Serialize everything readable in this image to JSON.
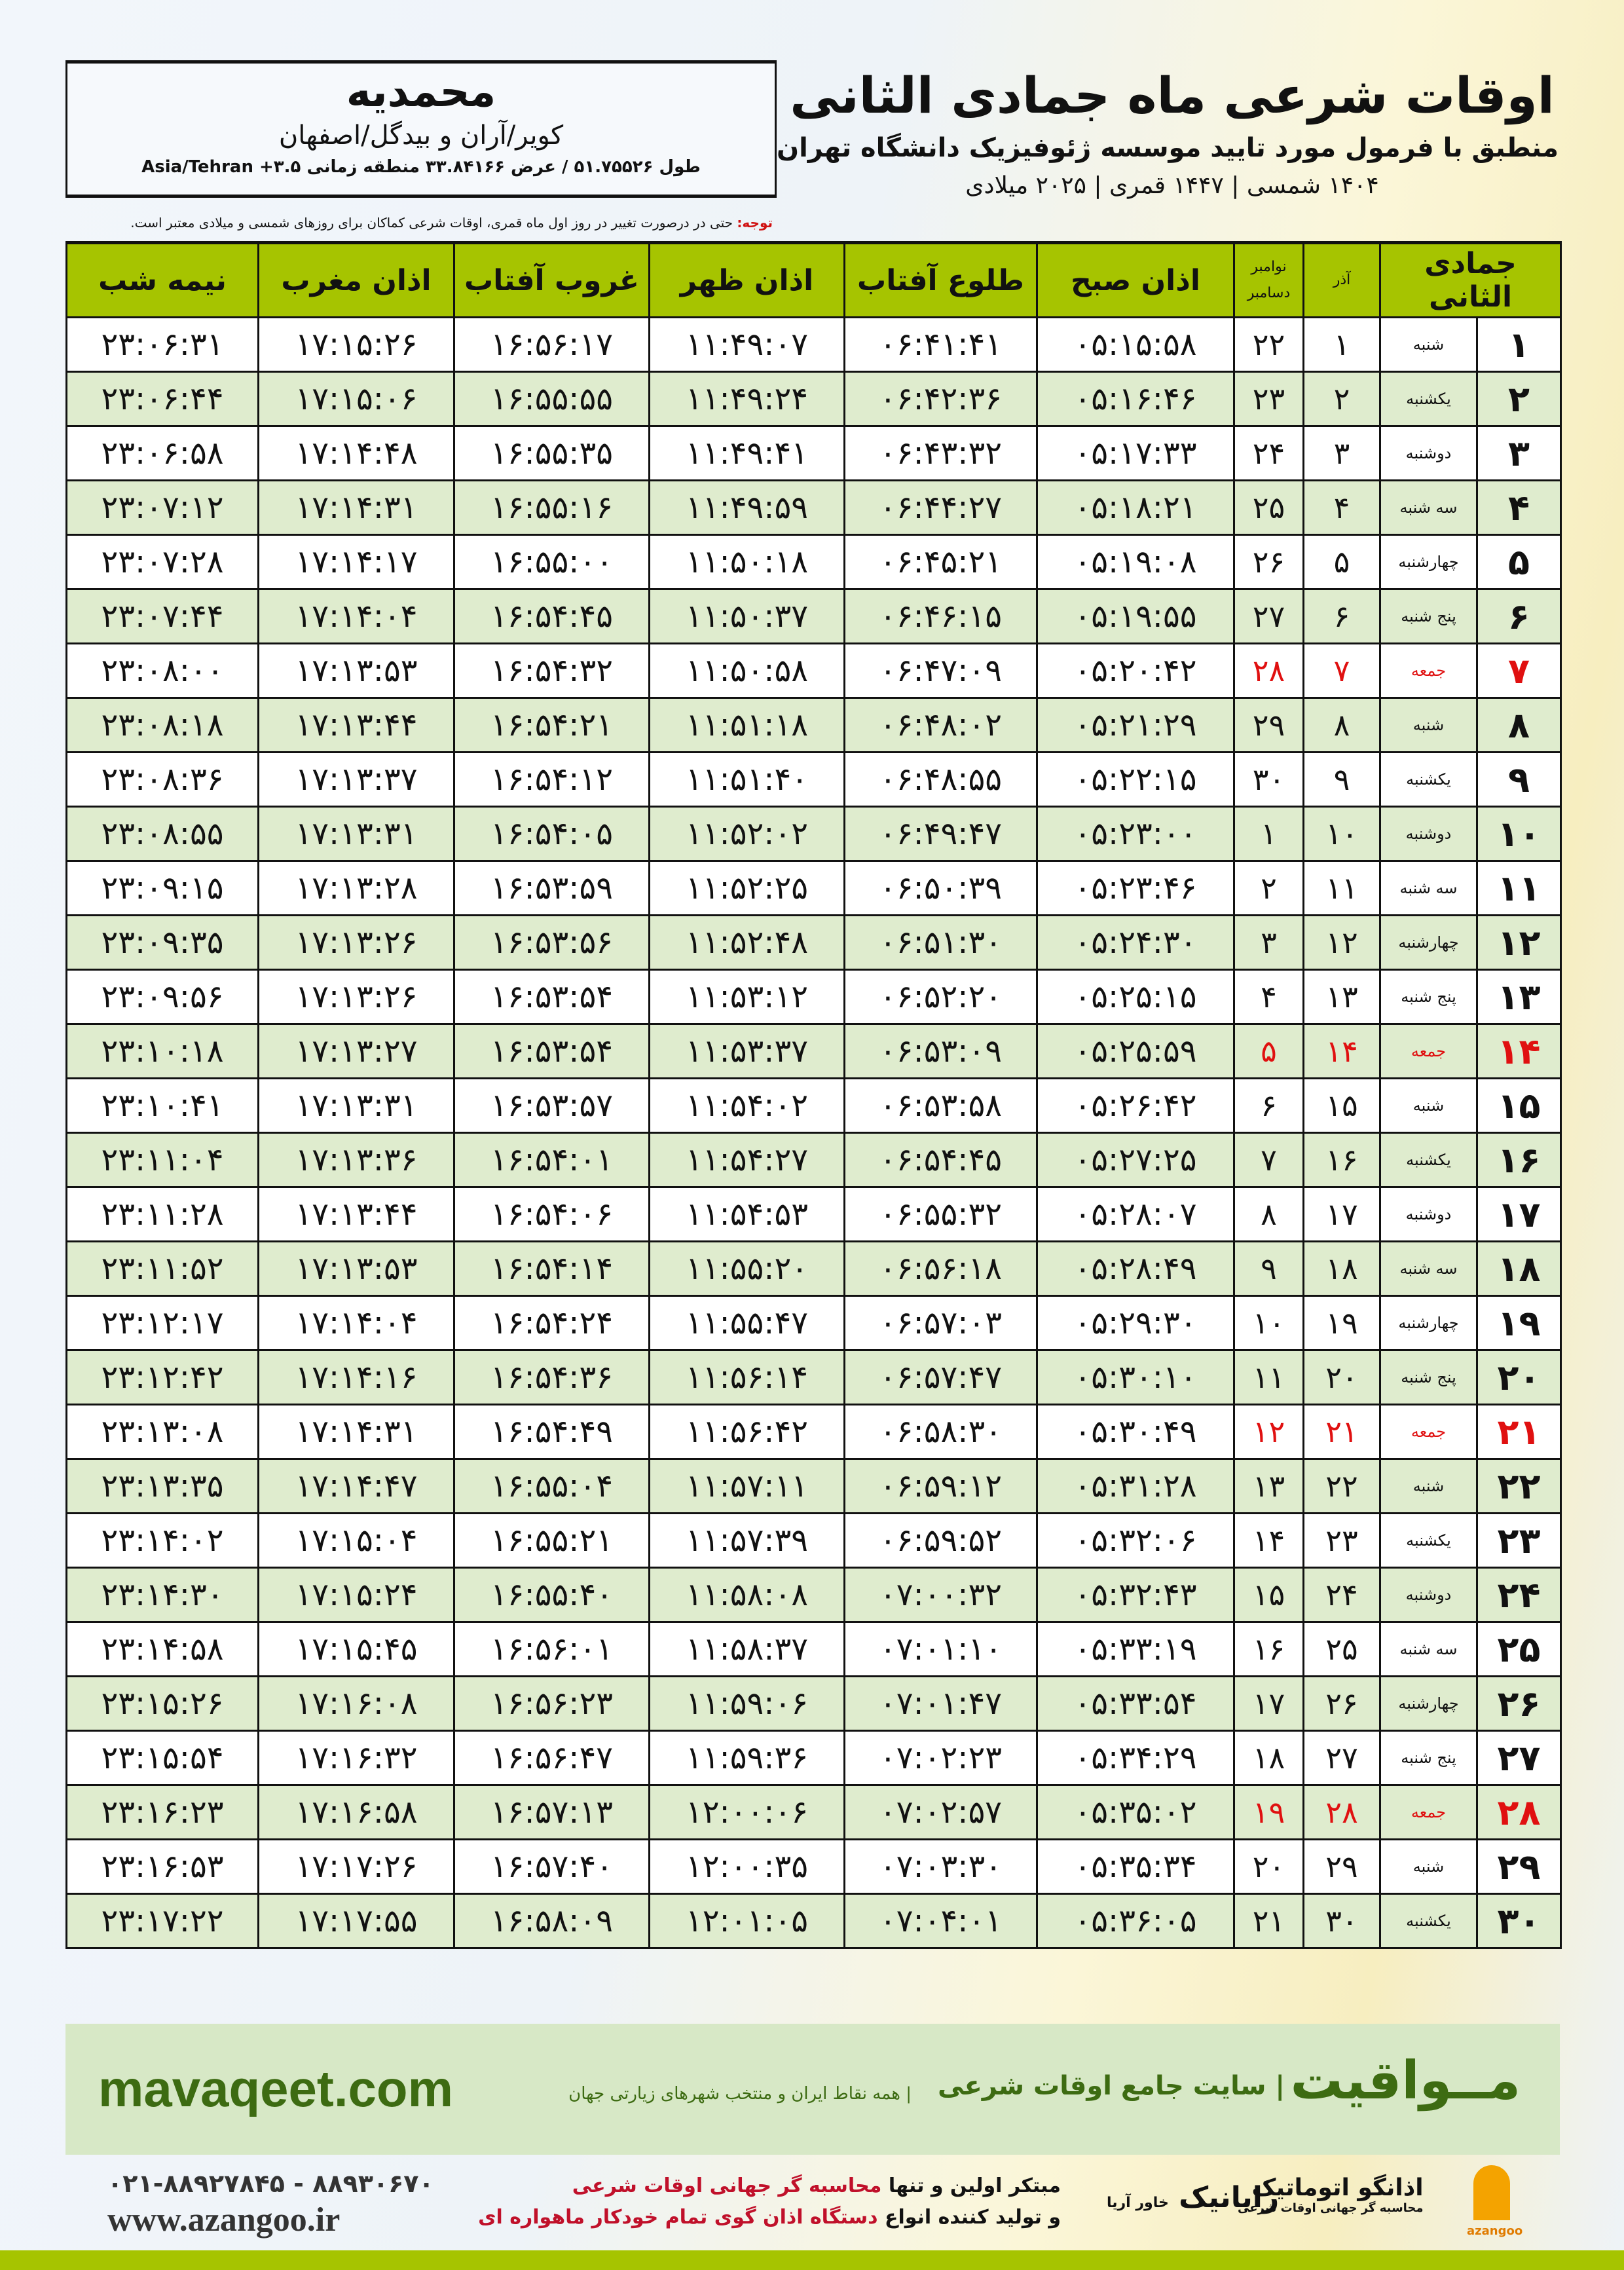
{
  "city": {
    "name": "محمدیه",
    "region": "کویر/آران و بیدگل/اصفهان",
    "coords": "طول ۵۱.۷۵۵۲۶ / عرض ۳۳.۸۴۱۶۶ منطقه زمانی ۳.۵+ Asia/Tehran"
  },
  "title": {
    "main": "اوقات شرعی ماه جمادی الثانی",
    "sub": "منطبق با فرمول مورد تایید موسسه ژئوفیزیک دانشگاه تهران",
    "years": "۱۴۰۴ شمسی | ۱۴۴۷ قمری | ۲۰۲۵ میلادی"
  },
  "note": {
    "label": "توجه:",
    "text": " حتی در درصورت تغییر در روز اول ماه قمری، اوقات شرعی کماکان برای روزهای شمسی و میلادی معتبر است."
  },
  "headers": {
    "hijri": "جمادی الثانی",
    "azar": "آذر",
    "nov": "نوامبر",
    "dec": "دسامبر",
    "fajr": "اذان صبح",
    "sunrise": "طلوع آفتاب",
    "dhuhr": "اذان ظهر",
    "sunset": "غروب آفتاب",
    "maghrib": "اذان مغرب",
    "midnight": "نیمه شب"
  },
  "friday_color": "#e01010",
  "header_color": "#a6c400",
  "rows": [
    [
      "۱",
      "شنبه",
      "۱",
      "۲۲",
      "۰۵:۱۵:۵۸",
      "۰۶:۴۱:۴۱",
      "۱۱:۴۹:۰۷",
      "۱۶:۵۶:۱۷",
      "۱۷:۱۵:۲۶",
      "۲۳:۰۶:۳۱"
    ],
    [
      "۲",
      "یکشنبه",
      "۲",
      "۲۳",
      "۰۵:۱۶:۴۶",
      "۰۶:۴۲:۳۶",
      "۱۱:۴۹:۲۴",
      "۱۶:۵۵:۵۵",
      "۱۷:۱۵:۰۶",
      "۲۳:۰۶:۴۴"
    ],
    [
      "۳",
      "دوشنبه",
      "۳",
      "۲۴",
      "۰۵:۱۷:۳۳",
      "۰۶:۴۳:۳۲",
      "۱۱:۴۹:۴۱",
      "۱۶:۵۵:۳۵",
      "۱۷:۱۴:۴۸",
      "۲۳:۰۶:۵۸"
    ],
    [
      "۴",
      "سه شنبه",
      "۴",
      "۲۵",
      "۰۵:۱۸:۲۱",
      "۰۶:۴۴:۲۷",
      "۱۱:۴۹:۵۹",
      "۱۶:۵۵:۱۶",
      "۱۷:۱۴:۳۱",
      "۲۳:۰۷:۱۲"
    ],
    [
      "۵",
      "چهارشنبه",
      "۵",
      "۲۶",
      "۰۵:۱۹:۰۸",
      "۰۶:۴۵:۲۱",
      "۱۱:۵۰:۱۸",
      "۱۶:۵۵:۰۰",
      "۱۷:۱۴:۱۷",
      "۲۳:۰۷:۲۸"
    ],
    [
      "۶",
      "پنج شنبه",
      "۶",
      "۲۷",
      "۰۵:۱۹:۵۵",
      "۰۶:۴۶:۱۵",
      "۱۱:۵۰:۳۷",
      "۱۶:۵۴:۴۵",
      "۱۷:۱۴:۰۴",
      "۲۳:۰۷:۴۴"
    ],
    [
      "۷",
      "جمعه",
      "۷",
      "۲۸",
      "۰۵:۲۰:۴۲",
      "۰۶:۴۷:۰۹",
      "۱۱:۵۰:۵۸",
      "۱۶:۵۴:۳۲",
      "۱۷:۱۳:۵۳",
      "۲۳:۰۸:۰۰"
    ],
    [
      "۸",
      "شنبه",
      "۸",
      "۲۹",
      "۰۵:۲۱:۲۹",
      "۰۶:۴۸:۰۲",
      "۱۱:۵۱:۱۸",
      "۱۶:۵۴:۲۱",
      "۱۷:۱۳:۴۴",
      "۲۳:۰۸:۱۸"
    ],
    [
      "۹",
      "یکشنبه",
      "۹",
      "۳۰",
      "۰۵:۲۲:۱۵",
      "۰۶:۴۸:۵۵",
      "۱۱:۵۱:۴۰",
      "۱۶:۵۴:۱۲",
      "۱۷:۱۳:۳۷",
      "۲۳:۰۸:۳۶"
    ],
    [
      "۱۰",
      "دوشنبه",
      "۱۰",
      "۱",
      "۰۵:۲۳:۰۰",
      "۰۶:۴۹:۴۷",
      "۱۱:۵۲:۰۲",
      "۱۶:۵۴:۰۵",
      "۱۷:۱۳:۳۱",
      "۲۳:۰۸:۵۵"
    ],
    [
      "۱۱",
      "سه شنبه",
      "۱۱",
      "۲",
      "۰۵:۲۳:۴۶",
      "۰۶:۵۰:۳۹",
      "۱۱:۵۲:۲۵",
      "۱۶:۵۳:۵۹",
      "۱۷:۱۳:۲۸",
      "۲۳:۰۹:۱۵"
    ],
    [
      "۱۲",
      "چهارشنبه",
      "۱۲",
      "۳",
      "۰۵:۲۴:۳۰",
      "۰۶:۵۱:۳۰",
      "۱۱:۵۲:۴۸",
      "۱۶:۵۳:۵۶",
      "۱۷:۱۳:۲۶",
      "۲۳:۰۹:۳۵"
    ],
    [
      "۱۳",
      "پنج شنبه",
      "۱۳",
      "۴",
      "۰۵:۲۵:۱۵",
      "۰۶:۵۲:۲۰",
      "۱۱:۵۳:۱۲",
      "۱۶:۵۳:۵۴",
      "۱۷:۱۳:۲۶",
      "۲۳:۰۹:۵۶"
    ],
    [
      "۱۴",
      "جمعه",
      "۱۴",
      "۵",
      "۰۵:۲۵:۵۹",
      "۰۶:۵۳:۰۹",
      "۱۱:۵۳:۳۷",
      "۱۶:۵۳:۵۴",
      "۱۷:۱۳:۲۷",
      "۲۳:۱۰:۱۸"
    ],
    [
      "۱۵",
      "شنبه",
      "۱۵",
      "۶",
      "۰۵:۲۶:۴۲",
      "۰۶:۵۳:۵۸",
      "۱۱:۵۴:۰۲",
      "۱۶:۵۳:۵۷",
      "۱۷:۱۳:۳۱",
      "۲۳:۱۰:۴۱"
    ],
    [
      "۱۶",
      "یکشنبه",
      "۱۶",
      "۷",
      "۰۵:۲۷:۲۵",
      "۰۶:۵۴:۴۵",
      "۱۱:۵۴:۲۷",
      "۱۶:۵۴:۰۱",
      "۱۷:۱۳:۳۶",
      "۲۳:۱۱:۰۴"
    ],
    [
      "۱۷",
      "دوشنبه",
      "۱۷",
      "۸",
      "۰۵:۲۸:۰۷",
      "۰۶:۵۵:۳۲",
      "۱۱:۵۴:۵۳",
      "۱۶:۵۴:۰۶",
      "۱۷:۱۳:۴۴",
      "۲۳:۱۱:۲۸"
    ],
    [
      "۱۸",
      "سه شنبه",
      "۱۸",
      "۹",
      "۰۵:۲۸:۴۹",
      "۰۶:۵۶:۱۸",
      "۱۱:۵۵:۲۰",
      "۱۶:۵۴:۱۴",
      "۱۷:۱۳:۵۳",
      "۲۳:۱۱:۵۲"
    ],
    [
      "۱۹",
      "چهارشنبه",
      "۱۹",
      "۱۰",
      "۰۵:۲۹:۳۰",
      "۰۶:۵۷:۰۳",
      "۱۱:۵۵:۴۷",
      "۱۶:۵۴:۲۴",
      "۱۷:۱۴:۰۴",
      "۲۳:۱۲:۱۷"
    ],
    [
      "۲۰",
      "پنج شنبه",
      "۲۰",
      "۱۱",
      "۰۵:۳۰:۱۰",
      "۰۶:۵۷:۴۷",
      "۱۱:۵۶:۱۴",
      "۱۶:۵۴:۳۶",
      "۱۷:۱۴:۱۶",
      "۲۳:۱۲:۴۲"
    ],
    [
      "۲۱",
      "جمعه",
      "۲۱",
      "۱۲",
      "۰۵:۳۰:۴۹",
      "۰۶:۵۸:۳۰",
      "۱۱:۵۶:۴۲",
      "۱۶:۵۴:۴۹",
      "۱۷:۱۴:۳۱",
      "۲۳:۱۳:۰۸"
    ],
    [
      "۲۲",
      "شنبه",
      "۲۲",
      "۱۳",
      "۰۵:۳۱:۲۸",
      "۰۶:۵۹:۱۲",
      "۱۱:۵۷:۱۱",
      "۱۶:۵۵:۰۴",
      "۱۷:۱۴:۴۷",
      "۲۳:۱۳:۳۵"
    ],
    [
      "۲۳",
      "یکشنبه",
      "۲۳",
      "۱۴",
      "۰۵:۳۲:۰۶",
      "۰۶:۵۹:۵۲",
      "۱۱:۵۷:۳۹",
      "۱۶:۵۵:۲۱",
      "۱۷:۱۵:۰۴",
      "۲۳:۱۴:۰۲"
    ],
    [
      "۲۴",
      "دوشنبه",
      "۲۴",
      "۱۵",
      "۰۵:۳۲:۴۳",
      "۰۷:۰۰:۳۲",
      "۱۱:۵۸:۰۸",
      "۱۶:۵۵:۴۰",
      "۱۷:۱۵:۲۴",
      "۲۳:۱۴:۳۰"
    ],
    [
      "۲۵",
      "سه شنبه",
      "۲۵",
      "۱۶",
      "۰۵:۳۳:۱۹",
      "۰۷:۰۱:۱۰",
      "۱۱:۵۸:۳۷",
      "۱۶:۵۶:۰۱",
      "۱۷:۱۵:۴۵",
      "۲۳:۱۴:۵۸"
    ],
    [
      "۲۶",
      "چهارشنبه",
      "۲۶",
      "۱۷",
      "۰۵:۳۳:۵۴",
      "۰۷:۰۱:۴۷",
      "۱۱:۵۹:۰۶",
      "۱۶:۵۶:۲۳",
      "۱۷:۱۶:۰۸",
      "۲۳:۱۵:۲۶"
    ],
    [
      "۲۷",
      "پنج شنبه",
      "۲۷",
      "۱۸",
      "۰۵:۳۴:۲۹",
      "۰۷:۰۲:۲۳",
      "۱۱:۵۹:۳۶",
      "۱۶:۵۶:۴۷",
      "۱۷:۱۶:۳۲",
      "۲۳:۱۵:۵۴"
    ],
    [
      "۲۸",
      "جمعه",
      "۲۸",
      "۱۹",
      "۰۵:۳۵:۰۲",
      "۰۷:۰۲:۵۷",
      "۱۲:۰۰:۰۶",
      "۱۶:۵۷:۱۳",
      "۱۷:۱۶:۵۸",
      "۲۳:۱۶:۲۳"
    ],
    [
      "۲۹",
      "شنبه",
      "۲۹",
      "۲۰",
      "۰۵:۳۵:۳۴",
      "۰۷:۰۳:۳۰",
      "۱۲:۰۰:۳۵",
      "۱۶:۵۷:۴۰",
      "۱۷:۱۷:۲۶",
      "۲۳:۱۶:۵۳"
    ],
    [
      "۳۰",
      "یکشنبه",
      "۳۰",
      "۲۱",
      "۰۵:۳۶:۰۵",
      "۰۷:۰۴:۰۱",
      "۱۲:۰۱:۰۵",
      "۱۶:۵۸:۰۹",
      "۱۷:۱۷:۵۵",
      "۲۳:۱۷:۲۲"
    ]
  ],
  "banner": {
    "logo": "مــواقیت",
    "tagline": "| سایت جامع اوقات شرعی",
    "sub": "| همه نقاط ایران و منتخب شهرهای زیارتی جهان",
    "url": "mavaqeet.com"
  },
  "footer": {
    "phone": "۰۲۱-۸۸۹۲۷۸۴۵ - ۸۸۹۳۰۶۷۰",
    "web": "www.azangoo.ir",
    "promo1a": "مبتکر اولین و تنها ",
    "promo1b": "محاسبه گر جهانی اوقات شرعی",
    "promo2a": "و تولید کننده انواع ",
    "promo2b": "دستگاه اذان گوی تمام خودکار ماهواره ای",
    "logo2": "رایانیک",
    "logo2_sub": "خاور آریا",
    "logo1": "اذانگو اتوماتیک",
    "logo1_sub": "محاسبه گر جهانی اوقات شرعی",
    "logo1_brand": "azangoo"
  }
}
